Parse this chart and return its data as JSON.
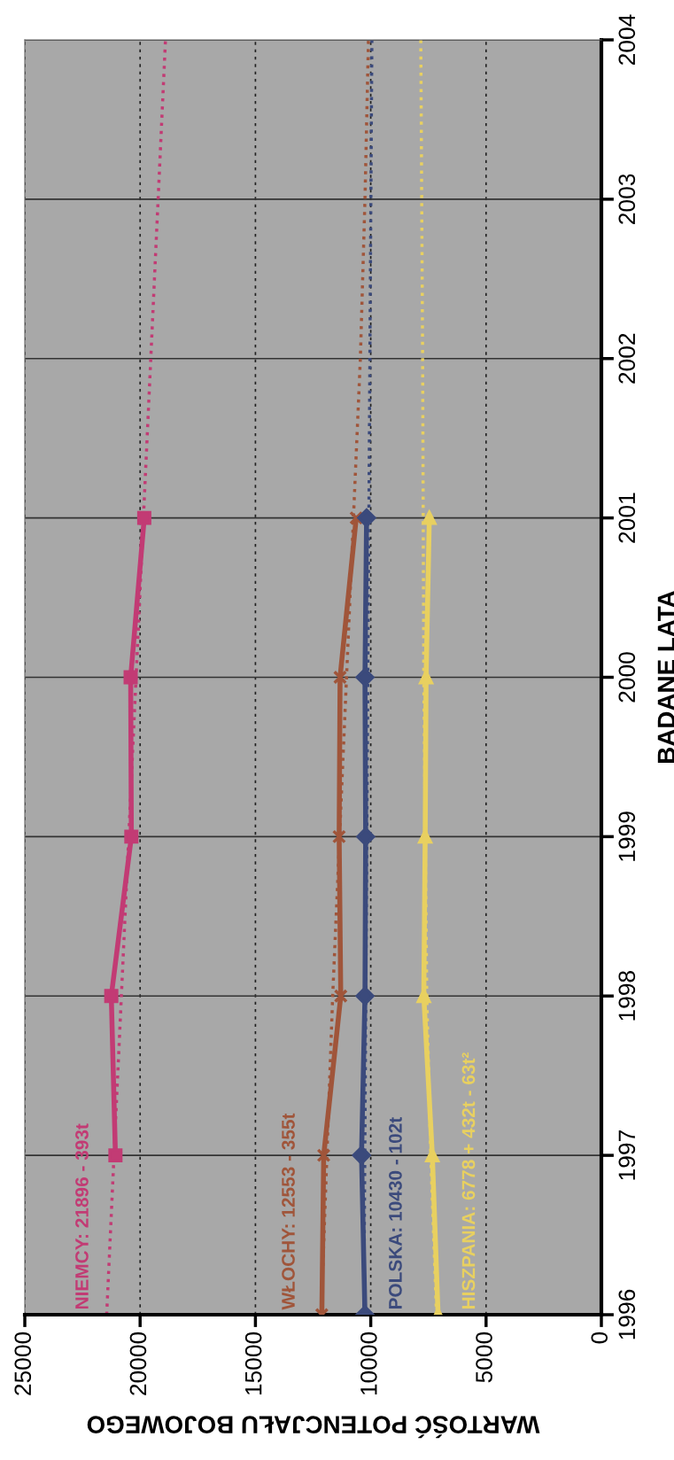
{
  "chart_data": {
    "type": "line",
    "xlabel": "WARTOŚĆ POTENCJAŁU BOJOWEGO",
    "ylabel": "BADANE LATA",
    "xlim": [
      25000,
      0
    ],
    "xticks": [
      25000,
      20000,
      15000,
      10000,
      5000,
      0
    ],
    "ylim": [
      1996,
      2004
    ],
    "yticks": [
      1996,
      1997,
      1998,
      1999,
      2000,
      2001,
      2002,
      2003,
      2004
    ],
    "grid": true,
    "legend": false,
    "series": [
      {
        "name": "NIEMCY: 21896 - 393t",
        "color": "#c23b74",
        "marker": "square",
        "x": [
          21070,
          21250,
          20380,
          20410,
          19820
        ],
        "values": [
          1997,
          1998,
          1999,
          2000,
          2001
        ]
      },
      {
        "name": "WŁOCHY: 12553 - 355t",
        "color": "#a0553a",
        "marker": "cross",
        "x": [
          12120,
          12040,
          11300,
          11370,
          11330,
          10630
        ],
        "values": [
          1996,
          1997,
          1998,
          1999,
          2000,
          2001
        ]
      },
      {
        "name": "POLSKA: 10430 - 102t",
        "color": "#3b4a7c",
        "marker": "diamond",
        "x": [
          10250,
          10400,
          10250,
          10220,
          10250,
          10180
        ],
        "values": [
          1996,
          1997,
          1998,
          1999,
          2000,
          2001
        ]
      },
      {
        "name": "HISZPANIA: 6778 + 432t - 63t²",
        "color": "#e8d060",
        "marker": "triangle",
        "x": [
          7080,
          7330,
          7700,
          7640,
          7600,
          7460
        ],
        "values": [
          1996,
          1997,
          1998,
          1999,
          2000,
          2001
        ]
      },
      {
        "type": "line",
        "color": "#c23b74",
        "line_style": "dotted",
        "marker": "none",
        "x": [
          21450,
          18900
        ],
        "values": [
          1996,
          2004
        ]
      },
      {
        "type": "line",
        "color": "#a0553a",
        "line_style": "dotted",
        "marker": "none",
        "x": [
          12150,
          11650,
          11050,
          10750,
          10450,
          10250,
          10100
        ],
        "values": [
          1996,
          1998,
          2000,
          2001,
          2002,
          2003,
          2004
        ]
      },
      {
        "type": "line",
        "color": "#3b4a7c",
        "line_style": "dotted",
        "marker": "none",
        "x": [
          10300,
          9950
        ],
        "values": [
          1996,
          2004
        ]
      },
      {
        "type": "line",
        "color": "#e8d060",
        "line_style": "dotted",
        "marker": "none",
        "x": [
          7150,
          7400,
          7570,
          7700,
          7750,
          7830
        ],
        "values": [
          1996,
          1997,
          1998,
          2000,
          2002,
          2004
        ]
      }
    ]
  }
}
